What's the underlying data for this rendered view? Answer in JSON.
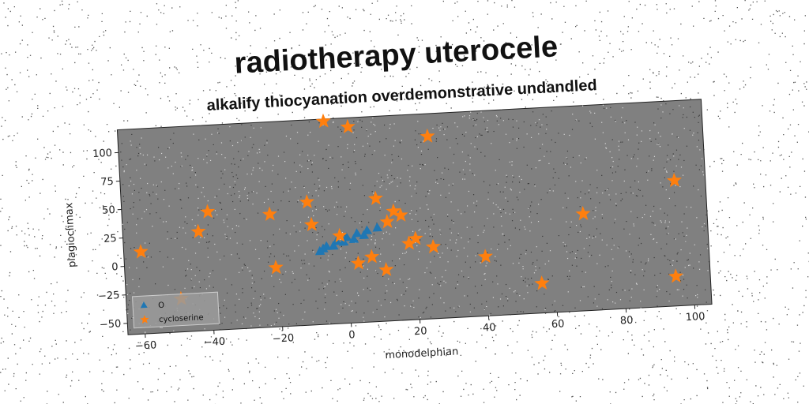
{
  "chart_data": {
    "type": "scatter",
    "title": "radiotherapy uterocele",
    "subtitle": "alkalify thiocyanation overdemonstrative undandled",
    "xlabel": "monodelphian",
    "ylabel": "plagioclimax",
    "xlim": [
      -65,
      105
    ],
    "ylim": [
      -60,
      120
    ],
    "xticks": [
      "−60",
      "−40",
      "−20",
      "0",
      "20",
      "40",
      "60",
      "80",
      "100"
    ],
    "yticks": [
      "−50",
      "−25",
      "0",
      "25",
      "50",
      "75",
      "100"
    ],
    "grid": false,
    "legend_position": "lower-left",
    "plot_background": "#808080",
    "series": [
      {
        "name": "O",
        "marker": "triangle",
        "color": "#1f77b4",
        "x": [
          -8,
          -6,
          -3,
          0,
          3,
          6,
          9,
          5,
          2,
          -1,
          -4,
          -7
        ],
        "y": [
          4,
          8,
          12,
          15,
          18,
          20,
          22,
          16,
          13,
          11,
          8,
          6
        ]
      },
      {
        "name": "cycloserine",
        "marker": "star",
        "color": "#ff7f0e",
        "x": [
          -5,
          2,
          25,
          -60,
          -49,
          -43,
          -40,
          -22,
          -21,
          -11,
          -10,
          -2,
          3,
          7,
          9,
          11,
          12,
          14,
          16,
          18,
          20,
          25,
          40,
          56,
          69,
          95,
          96
        ],
        "y": [
          118,
          112,
          100,
          12,
          -31,
          27,
          44,
          39,
          -8,
          48,
          28,
          17,
          -8,
          -3,
          48,
          -15,
          27,
          36,
          32,
          7,
          11,
          3,
          -8,
          -34,
          25,
          -34,
          50
        ]
      }
    ]
  }
}
